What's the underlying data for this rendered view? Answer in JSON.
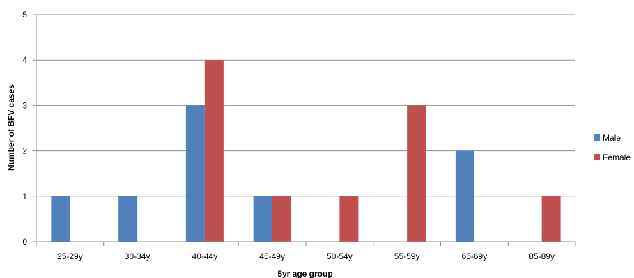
{
  "chart_data": {
    "type": "bar",
    "title": "",
    "xlabel": "5yr age group",
    "ylabel": "Number of BFV cases",
    "categories": [
      "25-29y",
      "30-34y",
      "40-44y",
      "45-49y",
      "50-54y",
      "55-59y",
      "65-69y",
      "85-89y"
    ],
    "series": [
      {
        "name": "Male",
        "color": "#4f81bd",
        "values": [
          1,
          1,
          3,
          1,
          0,
          0,
          2,
          0
        ]
      },
      {
        "name": "Female",
        "color": "#c0504d",
        "values": [
          0,
          0,
          4,
          1,
          1,
          3,
          0,
          1
        ]
      }
    ],
    "ylim": [
      0,
      5
    ],
    "yticks": [
      0,
      1,
      2,
      3,
      4,
      5
    ],
    "grid": true,
    "legend_position": "right"
  }
}
